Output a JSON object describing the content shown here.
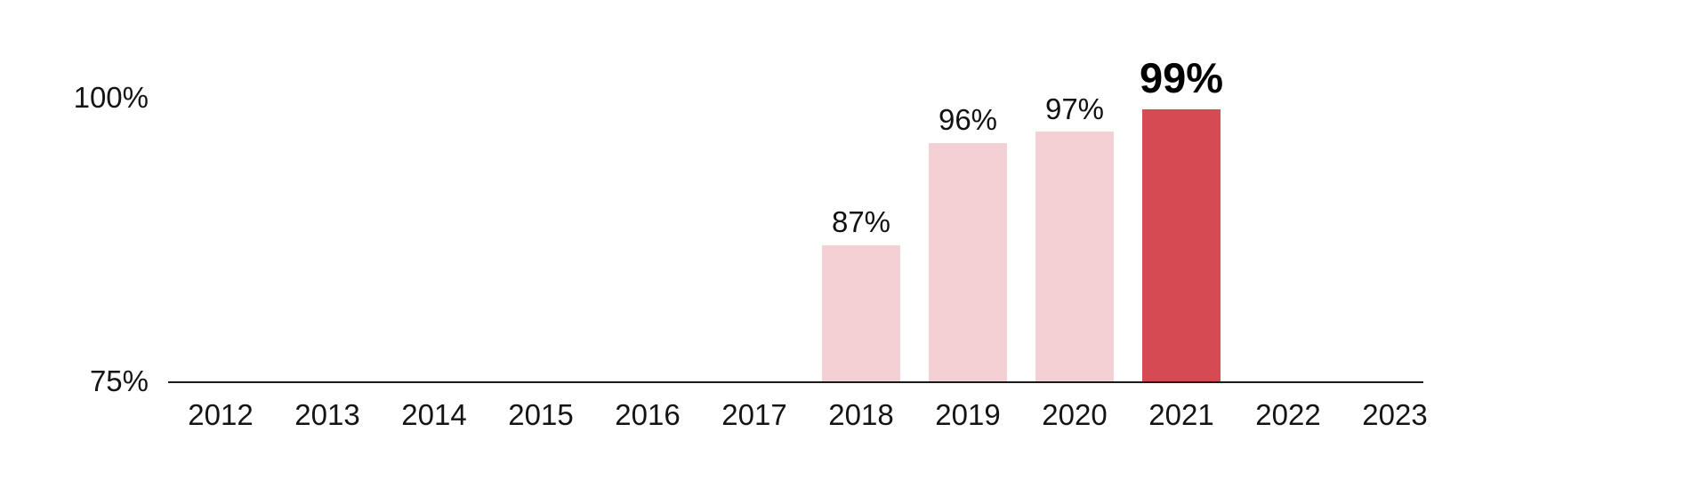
{
  "chart_data": {
    "type": "bar",
    "title": "",
    "categories": [
      "2012",
      "2013",
      "2014",
      "2015",
      "2016",
      "2017",
      "2018",
      "2019",
      "2020",
      "2021",
      "2022",
      "2023"
    ],
    "values": [
      null,
      null,
      null,
      null,
      null,
      null,
      87,
      96,
      97,
      99,
      null,
      null
    ],
    "labels": [
      "",
      "",
      "",
      "",
      "",
      "",
      "87%",
      "96%",
      "97%",
      "99%",
      "",
      ""
    ],
    "highlight_category": "2021",
    "y_ticks": [
      {
        "label": "100%",
        "value": 100
      },
      {
        "label": "75%",
        "value": 75
      }
    ],
    "ylim": [
      75,
      100
    ],
    "xlabel": "",
    "ylabel": "",
    "grid": false,
    "legend": false,
    "colors": {
      "bar": "#f2d0d4",
      "highlight_bar": "#d64a53",
      "axis": "#1a1a1a",
      "text": "#141414"
    }
  }
}
